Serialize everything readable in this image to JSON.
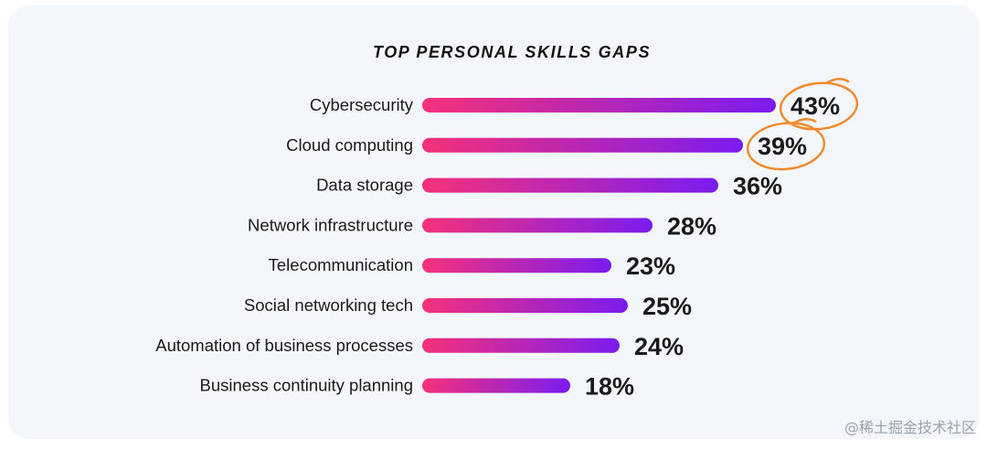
{
  "chart_data": {
    "type": "bar",
    "orientation": "horizontal",
    "title": "TOP PERSONAL SKILLS GAPS",
    "categories": [
      "Cybersecurity",
      "Cloud computing",
      "Data storage",
      "Network infrastructure",
      "Telecommunication",
      "Social networking tech",
      "Automation of business processes",
      "Business continuity planning"
    ],
    "values": [
      43,
      39,
      36,
      28,
      23,
      25,
      24,
      18
    ],
    "value_labels": [
      "43%",
      "39%",
      "36%",
      "28%",
      "23%",
      "25%",
      "24%",
      "18%"
    ],
    "highlighted": [
      "Cybersecurity",
      "Cloud computing"
    ],
    "grid": false,
    "legend": "none",
    "colors": {
      "bar_gradient_start": "#f5317a",
      "bar_gradient_end": "#7a1cf0",
      "highlight_circle": "#f08a2c",
      "text": "#1a1a1a"
    }
  },
  "watermark": "@稀土掘金技术社区"
}
